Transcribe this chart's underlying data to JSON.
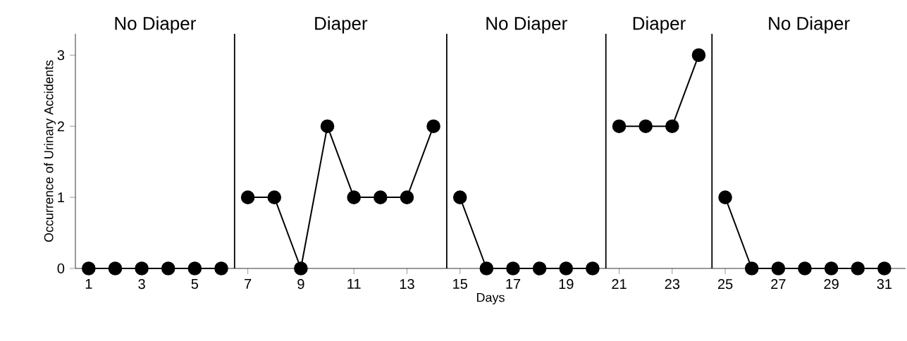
{
  "chart_data": {
    "type": "line",
    "xlabel": "Days",
    "ylabel": "Occurrence of Urinary Accidents",
    "xlim": [
      0.5,
      31.8
    ],
    "ylim": [
      0,
      3.3
    ],
    "xticks": [
      1,
      3,
      5,
      7,
      9,
      11,
      13,
      15,
      17,
      19,
      21,
      23,
      25,
      27,
      29,
      31
    ],
    "yticks": [
      0,
      1,
      2,
      3
    ],
    "marker": "circle",
    "line_style": "solid",
    "series": [
      {
        "color": "#000000",
        "x": [
          1,
          2,
          3,
          4,
          5,
          6
        ],
        "values": [
          0,
          0,
          0,
          0,
          0,
          0
        ]
      },
      {
        "color": "#000000",
        "x": [
          7,
          8,
          9,
          10,
          11,
          12,
          13,
          14
        ],
        "values": [
          1,
          1,
          0,
          2,
          1,
          1,
          1,
          2
        ]
      },
      {
        "color": "#000000",
        "x": [
          15,
          16,
          17,
          18,
          19,
          20
        ],
        "values": [
          1,
          0,
          0,
          0,
          0,
          0
        ]
      },
      {
        "color": "#000000",
        "x": [
          21,
          22,
          23,
          24
        ],
        "values": [
          2,
          2,
          2,
          3
        ]
      },
      {
        "color": "#000000",
        "x": [
          25,
          26,
          27,
          28,
          29,
          30,
          31
        ],
        "values": [
          1,
          0,
          0,
          0,
          0,
          0,
          0
        ]
      }
    ],
    "ref_lines": [
      {
        "axis": "x",
        "value": 6.5,
        "color": "#000000"
      },
      {
        "axis": "x",
        "value": 14.5,
        "color": "#000000"
      },
      {
        "axis": "x",
        "value": 20.5,
        "color": "#000000"
      },
      {
        "axis": "x",
        "value": 24.5,
        "color": "#000000"
      }
    ],
    "annotations": [
      "No Diaper",
      "Diaper",
      "No Diaper",
      "Diaper",
      "No Diaper"
    ]
  }
}
